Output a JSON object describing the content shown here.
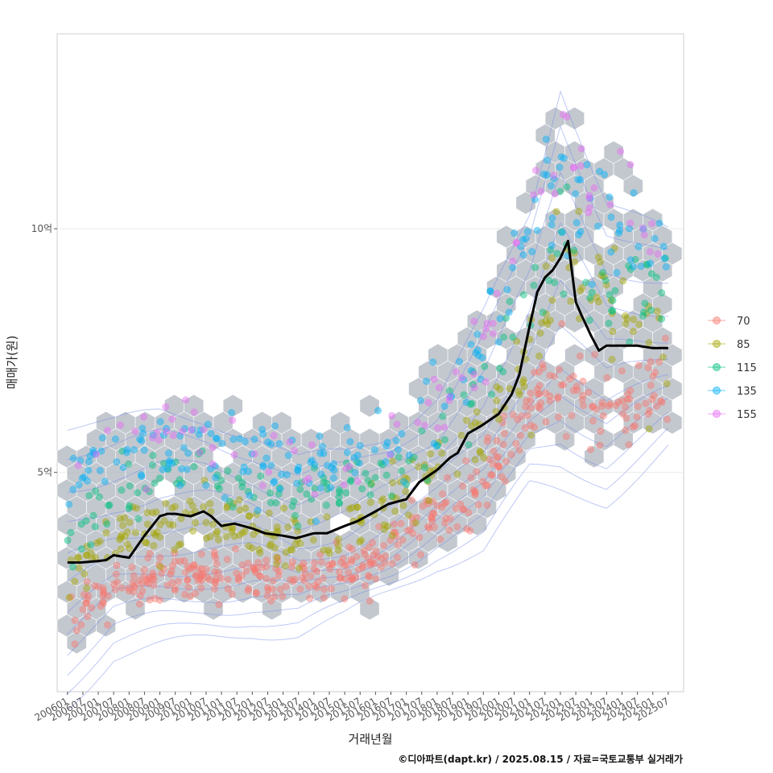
{
  "chart_data": {
    "type": "scatter",
    "xlabel": "거래년월",
    "ylabel": "매매가(원)",
    "caption": "©디아파트(dapt.kr) / 2025.08.15 / 자료=국토교통부 실거래가",
    "x_ticks": [
      "200601",
      "200607",
      "200701",
      "200707",
      "200801",
      "200807",
      "200901",
      "200907",
      "201001",
      "201007",
      "201101",
      "201107",
      "201201",
      "201207",
      "201301",
      "201307",
      "201401",
      "201407",
      "201501",
      "201507",
      "201601",
      "201607",
      "201701",
      "201707",
      "201801",
      "201807",
      "201901",
      "201907",
      "202001",
      "202007",
      "202101",
      "202107",
      "202201",
      "202207",
      "202301",
      "202307",
      "202401",
      "202407",
      "202501",
      "202507"
    ],
    "y_ticks": [
      {
        "value": 5,
        "label": "5억"
      },
      {
        "value": 10,
        "label": "10억"
      }
    ],
    "ylim": [
      0.5,
      14
    ],
    "xlim": [
      "2005-09",
      "2026-01"
    ],
    "grid": true,
    "legend_position": "right",
    "legend": [
      {
        "label": "70",
        "color": "#F8766D"
      },
      {
        "label": "85",
        "color": "#A3A500"
      },
      {
        "label": "115",
        "color": "#00BF7D"
      },
      {
        "label": "135",
        "color": "#00B0F6"
      },
      {
        "label": "155",
        "color": "#E76BF3"
      }
    ],
    "hex_color": "#A9B1BA",
    "contour_color": "#6F86E8",
    "median_line": {
      "x": [
        "2006-01",
        "2006-06",
        "2007-01",
        "2007-04",
        "2007-07",
        "2008-01",
        "2008-07",
        "2009-01",
        "2009-04",
        "2009-07",
        "2010-01",
        "2010-06",
        "2010-09",
        "2011-01",
        "2011-06",
        "2012-01",
        "2012-06",
        "2013-01",
        "2013-06",
        "2014-01",
        "2014-06",
        "2015-01",
        "2015-06",
        "2016-01",
        "2016-06",
        "2017-01",
        "2017-06",
        "2018-01",
        "2018-06",
        "2018-09",
        "2019-01",
        "2019-06",
        "2020-01",
        "2020-06",
        "2020-09",
        "2021-01",
        "2021-04",
        "2021-07",
        "2021-10",
        "2022-01",
        "2022-04",
        "2022-07",
        "2022-09",
        "2023-01",
        "2023-04",
        "2023-07",
        "2024-01",
        "2024-07",
        "2025-01",
        "2025-07"
      ],
      "values": [
        3.15,
        3.15,
        3.18,
        3.2,
        3.3,
        3.25,
        3.7,
        4.1,
        4.15,
        4.15,
        4.1,
        4.2,
        4.1,
        3.9,
        3.95,
        3.85,
        3.75,
        3.7,
        3.65,
        3.75,
        3.75,
        3.9,
        4.0,
        4.2,
        4.35,
        4.45,
        4.8,
        5.05,
        5.3,
        5.4,
        5.8,
        5.95,
        6.2,
        6.6,
        7.0,
        8.0,
        8.7,
        9.0,
        9.15,
        9.4,
        9.75,
        8.5,
        8.25,
        7.8,
        7.5,
        7.6,
        7.6,
        7.6,
        7.55,
        7.55
      ]
    },
    "series": [
      {
        "name": "70",
        "trend_x": [
          "2006-01",
          "2007-07",
          "2009-01",
          "2010-07",
          "2012-01",
          "2013-07",
          "2015-01",
          "2016-07",
          "2018-01",
          "2019-07",
          "2021-01",
          "2022-01",
          "2023-07",
          "2025-07"
        ],
        "trend_y": [
          1.9,
          2.6,
          2.8,
          2.9,
          2.9,
          2.7,
          3.0,
          3.5,
          4.1,
          4.8,
          6.3,
          7.0,
          6.2,
          6.8
        ]
      },
      {
        "name": "85",
        "trend_x": [
          "2006-01",
          "2007-07",
          "2009-01",
          "2010-07",
          "2012-01",
          "2013-07",
          "2015-01",
          "2016-07",
          "2018-01",
          "2019-07",
          "2021-01",
          "2022-01",
          "2023-07",
          "2025-07"
        ],
        "trend_y": [
          2.9,
          3.6,
          3.9,
          4.0,
          3.8,
          3.7,
          3.9,
          4.4,
          5.1,
          5.9,
          7.3,
          9.4,
          8.7,
          7.7
        ]
      },
      {
        "name": "115",
        "trend_x": [
          "2006-01",
          "2007-07",
          "2009-01",
          "2010-07",
          "2012-01",
          "2013-07",
          "2015-01",
          "2016-07",
          "2018-01",
          "2019-07",
          "2021-01",
          "2022-01",
          "2023-07",
          "2025-07"
        ],
        "trend_y": [
          3.8,
          4.5,
          4.9,
          5.0,
          4.6,
          4.5,
          4.7,
          5.1,
          5.6,
          6.8,
          8.4,
          9.8,
          9.0,
          8.6
        ]
      },
      {
        "name": "135",
        "trend_x": [
          "2006-01",
          "2007-07",
          "2009-01",
          "2010-07",
          "2012-01",
          "2013-07",
          "2015-01",
          "2016-07",
          "2018-01",
          "2019-07",
          "2021-01",
          "2022-01",
          "2023-07",
          "2025-07"
        ],
        "trend_y": [
          5.0,
          5.2,
          5.5,
          5.5,
          5.3,
          4.9,
          5.1,
          5.5,
          6.2,
          7.6,
          9.7,
          11.0,
          9.8,
          9.2
        ]
      },
      {
        "name": "155",
        "trend_x": [
          "2006-01",
          "2007-07",
          "2009-01",
          "2010-07",
          "2012-01",
          "2013-07",
          "2015-01",
          "2016-07",
          "2018-01",
          "2019-07",
          "2021-01",
          "2022-01",
          "2023-07",
          "2025-07"
        ],
        "trend_y": [
          5.6,
          5.7,
          5.9,
          5.8,
          5.5,
          5.0,
          5.2,
          5.6,
          6.3,
          7.9,
          9.9,
          12.4,
          10.2,
          9.6
        ]
      }
    ]
  }
}
